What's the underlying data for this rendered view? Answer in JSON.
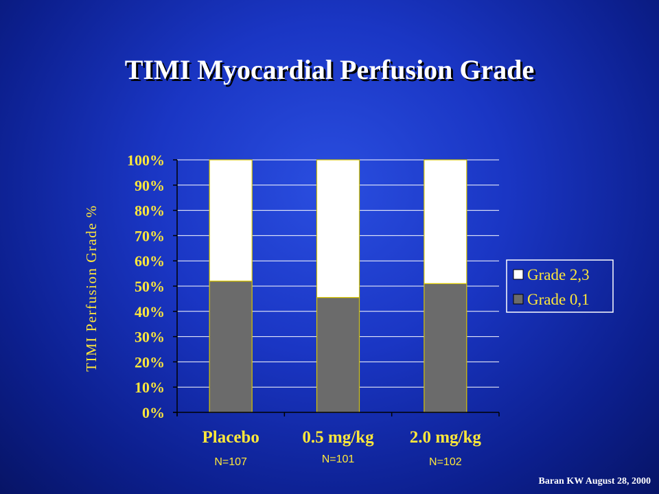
{
  "title": "TIMI Myocardial Perfusion Grade",
  "citation": "Baran KW August 28, 2000",
  "colors": {
    "label_gold": "#ffe83a",
    "grade01_fill": "#6b6b6b",
    "grade23_fill": "#ffffff",
    "bar_border": "#d9c600",
    "gridline": "#ffffff"
  },
  "chart_data": {
    "type": "bar",
    "stacked": true,
    "categories": [
      "Placebo",
      "0.5 mg/kg",
      "2.0 mg/kg"
    ],
    "sample_sizes": [
      "N=107",
      "N=101",
      "N=102"
    ],
    "ylabel": "TIMI Perfusion Grade %",
    "ylim": [
      0,
      100
    ],
    "y_ticks": [
      "0%",
      "10%",
      "20%",
      "30%",
      "40%",
      "50%",
      "60%",
      "70%",
      "80%",
      "90%",
      "100%"
    ],
    "grid": true,
    "legend_position": "right",
    "series": [
      {
        "name": "Grade 0,1",
        "values": [
          52,
          45.5,
          51
        ]
      },
      {
        "name": "Grade 2,3",
        "values": [
          48,
          54.5,
          49
        ]
      }
    ],
    "legend_order": [
      "Grade 2,3",
      "Grade 0,1"
    ]
  }
}
